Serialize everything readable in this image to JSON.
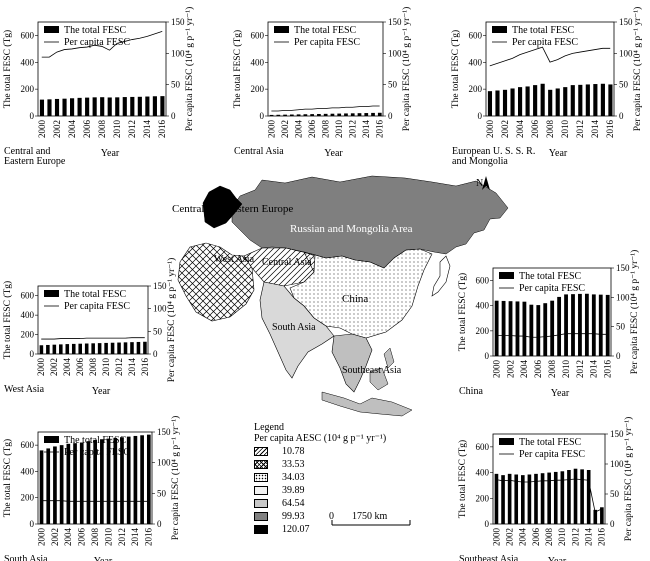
{
  "chart_data": [
    {
      "type": "bar+line",
      "region_label": "Central and\nEastern Europe",
      "xlabel": "Year",
      "ylabel": "The total FESC (Tg)",
      "y2label": "Per capita FESC (10⁴ g p⁻¹ yr⁻¹)",
      "series": [
        {
          "name": "The total FESC",
          "values": [
            122,
            124,
            127,
            129,
            132,
            135,
            137,
            139,
            140,
            138,
            139,
            141,
            142,
            143,
            145,
            147,
            148
          ]
        },
        {
          "name": "Per capita FESC",
          "values": [
            94,
            94,
            102,
            106,
            107,
            109,
            110,
            113,
            111,
            105,
            116,
            119,
            122,
            124,
            127,
            131,
            135
          ]
        }
      ]
    },
    {
      "type": "bar+line",
      "region_label": "Central Asia",
      "xlabel": "Year",
      "ylabel": "The total FESC (Tg)",
      "y2label": "Per capita FESC (10⁴ g p⁻¹ yr⁻¹)",
      "series": [
        {
          "name": "The total FESC",
          "values": [
            8,
            9,
            10,
            11,
            12,
            13,
            14,
            15,
            16,
            17,
            18,
            19,
            20,
            21,
            22,
            23,
            24
          ]
        },
        {
          "name": "Per capita FESC",
          "values": [
            8,
            8,
            9,
            9,
            10,
            11,
            11,
            12,
            12,
            13,
            13,
            14,
            14,
            15,
            15,
            16,
            16
          ]
        }
      ]
    },
    {
      "type": "bar+line",
      "region_label": "European U. S. S. R.\nand Mongolia",
      "xlabel": "Year",
      "ylabel": "The total FESC (Tg)",
      "y2label": "Per capita FESC (10⁴ g p⁻¹ yr⁻¹)",
      "series": [
        {
          "name": "The total FESC",
          "values": [
            185,
            190,
            195,
            205,
            215,
            220,
            230,
            240,
            195,
            205,
            215,
            230,
            232,
            235,
            238,
            240,
            235
          ]
        },
        {
          "name": "Per capita FESC",
          "values": [
            80,
            84,
            88,
            92,
            98,
            102,
            106,
            110,
            86,
            90,
            96,
            100,
            102,
            104,
            106,
            108,
            108
          ]
        }
      ]
    },
    {
      "type": "bar+line",
      "region_label": "West Asia",
      "xlabel": "Year",
      "ylabel": "The total FESC (Tg)",
      "y2label": "Per capita FESC (10⁴ g p⁻¹ yr⁻¹)",
      "series": [
        {
          "name": "The total FESC",
          "values": [
            90,
            93,
            96,
            99,
            102,
            104,
            106,
            108,
            110,
            112,
            114,
            116,
            118,
            120,
            122,
            124,
            126
          ]
        },
        {
          "name": "Per capita FESC",
          "values": [
            33,
            33,
            33,
            34,
            34,
            34,
            34,
            35,
            35,
            35,
            35,
            35,
            35,
            35,
            36,
            36,
            36
          ]
        }
      ]
    },
    {
      "type": "bar+line",
      "region_label": "China",
      "xlabel": "Year",
      "ylabel": "The total FESC (Tg)",
      "y2label": "Per capita FESC (10⁴ g p⁻¹ yr⁻¹)",
      "series": [
        {
          "name": "The total FESC",
          "values": [
            440,
            438,
            436,
            434,
            432,
            408,
            405,
            420,
            440,
            470,
            490,
            492,
            494,
            495,
            490,
            488,
            486
          ]
        },
        {
          "name": "Per capita FESC",
          "values": [
            35,
            35,
            35,
            34,
            34,
            32,
            32,
            33,
            34,
            36,
            38,
            38,
            38,
            38,
            38,
            37,
            37
          ]
        }
      ]
    },
    {
      "type": "bar+line",
      "region_label": "South Asia",
      "xlabel": "Year",
      "ylabel": "The total FESC (Tg)",
      "y2label": "Per capita FESC (10⁴ g p⁻¹ yr⁻¹)",
      "series": [
        {
          "name": "The total FESC",
          "values": [
            560,
            575,
            590,
            600,
            610,
            615,
            620,
            630,
            640,
            645,
            650,
            655,
            660,
            665,
            670,
            675,
            680
          ]
        },
        {
          "name": "Per capita FESC",
          "values": [
            38,
            38,
            38,
            38,
            37,
            37,
            37,
            37,
            37,
            37,
            37,
            37,
            37,
            37,
            37,
            37,
            37
          ]
        }
      ]
    },
    {
      "type": "bar+line",
      "region_label": "Southeast Asia",
      "xlabel": "Year",
      "ylabel": "The total FESC (Tg)",
      "y2label": "Per capita FESC (10⁴ g p⁻¹ yr⁻¹)",
      "series": [
        {
          "name": "The total FESC",
          "values": [
            390,
            380,
            390,
            385,
            380,
            385,
            390,
            395,
            400,
            405,
            410,
            420,
            430,
            425,
            420,
            110,
            130
          ]
        },
        {
          "name": "Per capita FESC",
          "values": [
            74,
            72,
            73,
            71,
            70,
            70,
            71,
            72,
            72,
            73,
            73,
            74,
            75,
            74,
            73,
            20,
            25
          ]
        }
      ]
    }
  ],
  "shared_axes": {
    "years": [
      "2000",
      "2002",
      "2004",
      "2006",
      "2008",
      "2010",
      "2012",
      "2014",
      "2016"
    ],
    "y_left_ticks": [
      "0",
      "200",
      "400",
      "600"
    ],
    "y_right_ticks": [
      "0",
      "50",
      "100",
      "150"
    ]
  },
  "map": {
    "regions": {
      "central_eastern_europe": "Central and Eastern Europe",
      "russia": "Russian and Mongolia Area",
      "west_asia": "West Asia",
      "central_asia": "Central Asia",
      "china": "China",
      "south_asia": "South Asia",
      "southeast_asia": "Southeast Asia"
    },
    "north": "N",
    "legend_title": "Legend",
    "legend_subtitle": "Per capita AESC (10⁴ g p⁻¹ yr⁻¹)",
    "legend_items": [
      "10.78",
      "33.53",
      "34.03",
      "39.89",
      "64.54",
      "99.93",
      "120.07"
    ],
    "scalebar": {
      "start": "0",
      "end": "1750 km"
    }
  }
}
